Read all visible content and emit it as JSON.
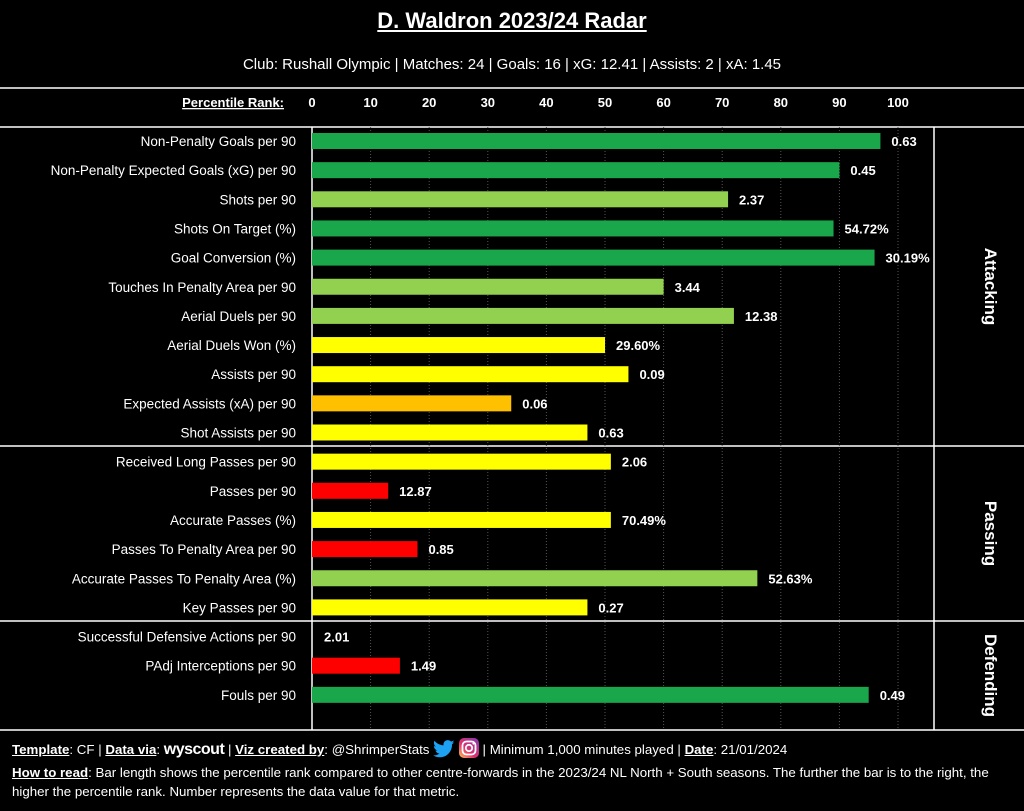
{
  "title": "D. Waldron 2023/24 Radar",
  "subtitle": "Club: Rushall Olympic | Matches: 24 | Goals: 16 | xG: 12.41 | Assists: 2 | xA: 1.45",
  "colors": {
    "dark_green": "#1aa64a",
    "light_green": "#92d050",
    "yellow": "#ffff00",
    "orange": "#ffc000",
    "red": "#ff0000"
  },
  "chart_data": {
    "type": "bar",
    "orientation": "horizontal",
    "axis_label": "Percentile Rank:",
    "xlim": [
      0,
      100
    ],
    "ticks": [
      0,
      10,
      20,
      30,
      40,
      50,
      60,
      70,
      80,
      90,
      100
    ],
    "grid": true,
    "sections": [
      {
        "name": "Attacking",
        "metrics": [
          {
            "label": "Non-Penalty Goals per 90",
            "percentile": 97,
            "value": "0.63",
            "color": "dark_green"
          },
          {
            "label": "Non-Penalty Expected Goals (xG) per 90",
            "percentile": 90,
            "value": "0.45",
            "color": "dark_green"
          },
          {
            "label": "Shots per 90",
            "percentile": 71,
            "value": "2.37",
            "color": "light_green"
          },
          {
            "label": "Shots On Target (%)",
            "percentile": 89,
            "value": "54.72%",
            "color": "dark_green"
          },
          {
            "label": "Goal Conversion (%)",
            "percentile": 96,
            "value": "30.19%",
            "color": "dark_green"
          },
          {
            "label": "Touches In Penalty Area per 90",
            "percentile": 60,
            "value": "3.44",
            "color": "light_green"
          },
          {
            "label": "Aerial Duels per 90",
            "percentile": 72,
            "value": "12.38",
            "color": "light_green"
          },
          {
            "label": "Aerial Duels Won (%)",
            "percentile": 50,
            "value": "29.60%",
            "color": "yellow"
          },
          {
            "label": "Assists per 90",
            "percentile": 54,
            "value": "0.09",
            "color": "yellow"
          },
          {
            "label": "Expected Assists (xA) per 90",
            "percentile": 34,
            "value": "0.06",
            "color": "orange"
          },
          {
            "label": "Shot Assists per 90",
            "percentile": 47,
            "value": "0.63",
            "color": "yellow"
          }
        ]
      },
      {
        "name": "Passing",
        "metrics": [
          {
            "label": "Received Long Passes per 90",
            "percentile": 51,
            "value": "2.06",
            "color": "yellow"
          },
          {
            "label": "Passes per 90",
            "percentile": 13,
            "value": "12.87",
            "color": "red"
          },
          {
            "label": "Accurate Passes (%)",
            "percentile": 51,
            "value": "70.49%",
            "color": "yellow"
          },
          {
            "label": "Passes To Penalty Area per 90",
            "percentile": 18,
            "value": "0.85",
            "color": "red"
          },
          {
            "label": "Accurate Passes To Penalty Area (%)",
            "percentile": 76,
            "value": "52.63%",
            "color": "light_green"
          },
          {
            "label": "Key Passes per 90",
            "percentile": 47,
            "value": "0.27",
            "color": "yellow"
          }
        ]
      },
      {
        "name": "Defending",
        "metrics": [
          {
            "label": "Successful Defensive Actions per 90",
            "percentile": 0,
            "value": "2.01",
            "color": "red"
          },
          {
            "label": "PAdj Interceptions per 90",
            "percentile": 15,
            "value": "1.49",
            "color": "red"
          },
          {
            "label": "Fouls per 90",
            "percentile": 95,
            "value": "0.49",
            "color": "dark_green"
          }
        ]
      }
    ]
  },
  "footer": {
    "template_label": "Template",
    "template_value": "CF",
    "data_via_label": "Data via",
    "data_source": "wyscout",
    "viz_label": "Viz created by",
    "handle": "@ShrimperStats",
    "min_minutes": "Minimum 1,000 minutes played",
    "date_label": "Date",
    "date_value": "21/01/2024",
    "how_label": "How to read",
    "how_text": "Bar length shows the percentile rank compared to other centre-forwards in the 2023/24 NL North + South seasons. The further the bar is to the right, the higher the percentile rank. Number represents the data value for that metric."
  }
}
